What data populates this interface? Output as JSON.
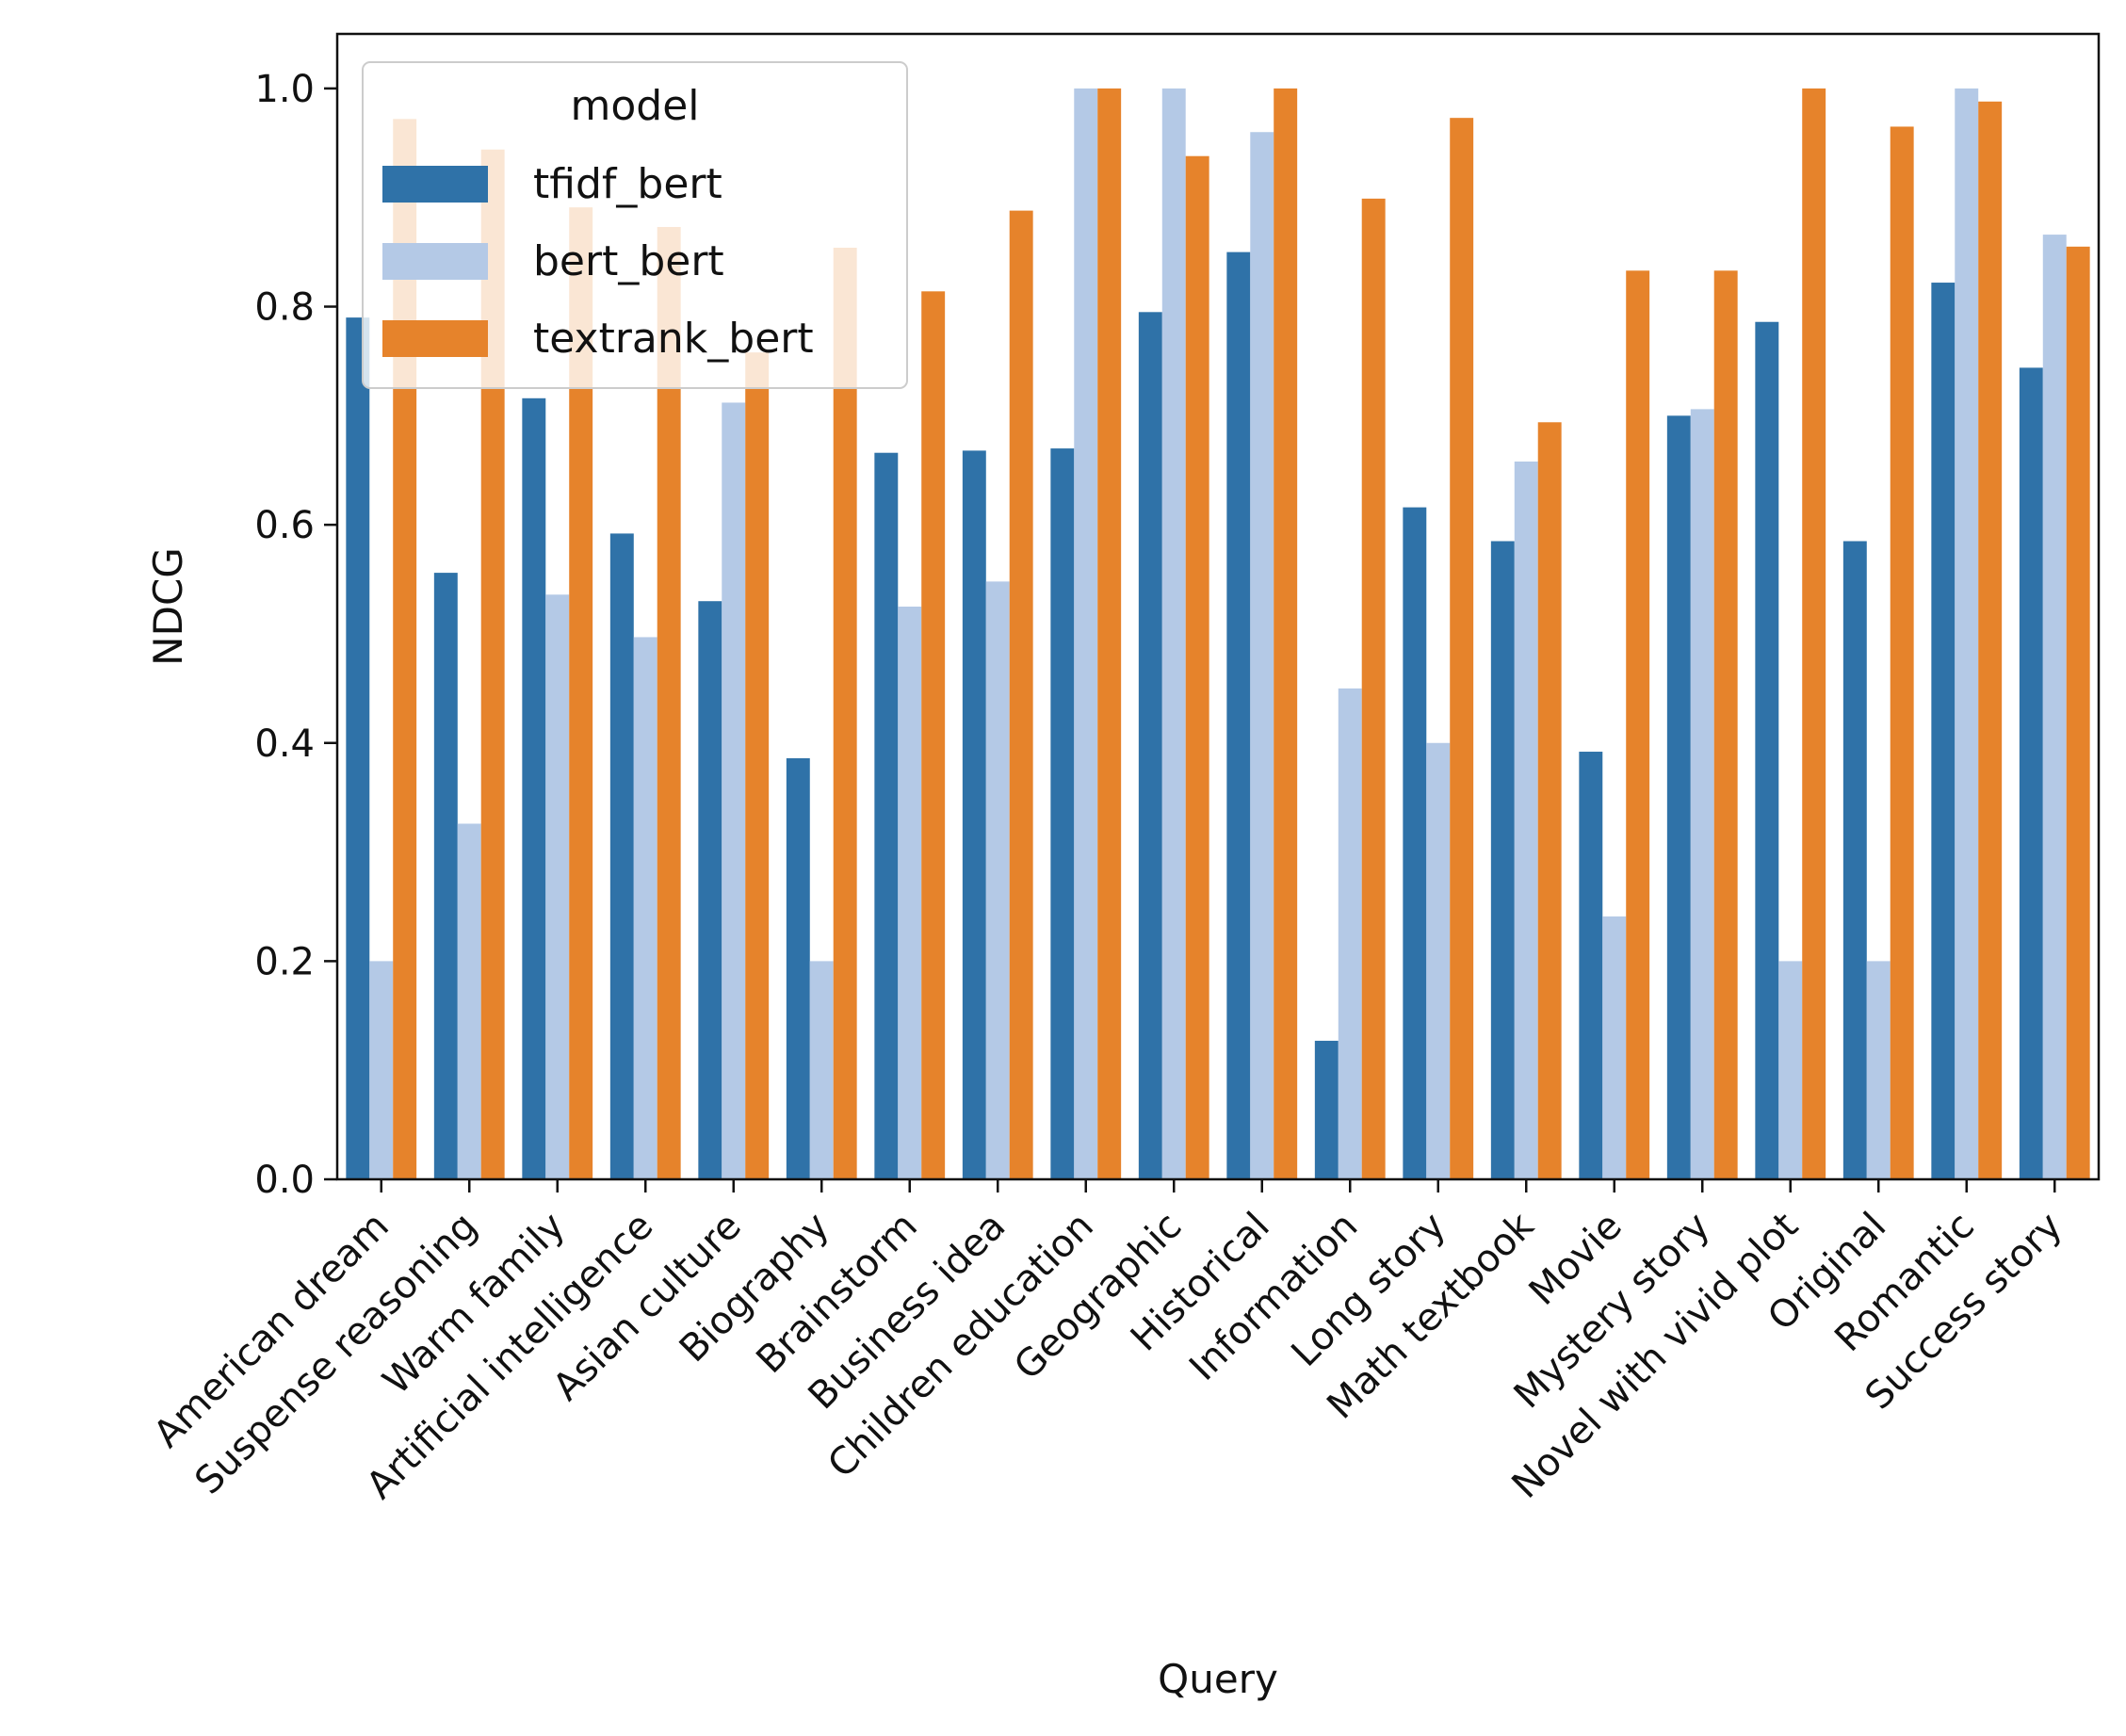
{
  "chart_data": {
    "type": "bar",
    "xlabel": "Query",
    "ylabel": "NDCG",
    "ylim": [
      0,
      1.05
    ],
    "yticks": [
      "0.0",
      "0.2",
      "0.4",
      "0.6",
      "0.8",
      "1.0"
    ],
    "grid": false,
    "legend": {
      "title": "model",
      "placement": "top-left"
    },
    "categories": [
      "American dream",
      "Suspense reasoning",
      "Warm family",
      "Artificial intelligence",
      "Asian culture",
      "Biography",
      "Brainstorm",
      "Business idea",
      "Children education",
      "Geographic",
      "Historical",
      "Information",
      "Long story",
      "Math textbook",
      "Movie",
      "Mystery story",
      "Novel with vivid plot",
      "Original",
      "Romantic",
      "Success story"
    ],
    "series": [
      {
        "name": "tfidf_bert",
        "color": "#2f72a8",
        "values": [
          0.79,
          0.556,
          0.716,
          0.592,
          0.53,
          0.386,
          0.666,
          0.668,
          0.67,
          0.795,
          0.85,
          0.127,
          0.616,
          0.585,
          0.392,
          0.7,
          0.786,
          0.585,
          0.822,
          0.744
        ]
      },
      {
        "name": "bert_bert",
        "color": "#b4c9e6",
        "values": [
          0.2,
          0.326,
          0.536,
          0.497,
          0.712,
          0.2,
          0.525,
          0.548,
          1.0,
          1.0,
          0.96,
          0.45,
          0.4,
          0.658,
          0.241,
          0.706,
          0.2,
          0.2,
          1.0,
          0.866
        ]
      },
      {
        "name": "textrank_bert",
        "color": "#e6832b",
        "values": [
          0.972,
          0.944,
          0.891,
          0.873,
          0.758,
          0.854,
          0.814,
          0.888,
          1.0,
          0.938,
          1.0,
          0.899,
          0.973,
          0.694,
          0.833,
          0.833,
          1.0,
          0.965,
          0.988,
          0.855
        ]
      }
    ]
  }
}
